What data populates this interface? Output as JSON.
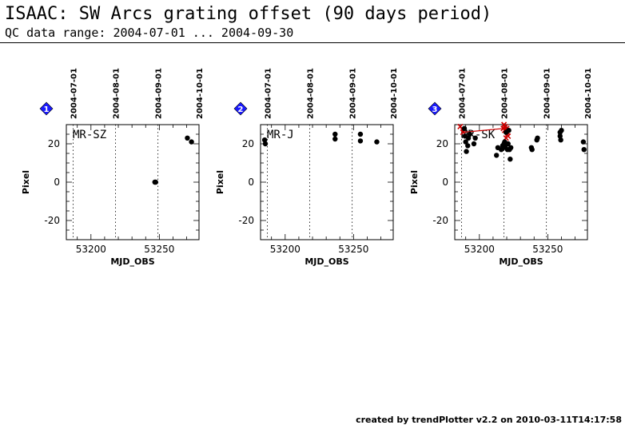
{
  "header": {
    "title": "ISAAC: SW Arcs grating offset (90 days period)",
    "subtitle": "QC data range: 2004-07-01 ... 2004-09-30"
  },
  "footer": {
    "credit": "created by trendPlotter v2.2 on 2010-03-11T14:17:58"
  },
  "colors": {
    "marker": "#000000",
    "highlight": "#cc0000",
    "badge": "#1a1aff"
  },
  "chart_data": [
    {
      "type": "scatter",
      "badge": "1",
      "label": "MR-SZ",
      "xlabel": "MJD_OBS",
      "ylabel": "Pixel",
      "xlim": [
        53182,
        53279
      ],
      "ylim": [
        -30,
        30
      ],
      "xticks": [
        53200,
        53250
      ],
      "yticks": [
        20,
        0,
        -20
      ],
      "date_ticks": [
        {
          "label": "2004-07-01",
          "mjd": 53187
        },
        {
          "label": "2004-08-01",
          "mjd": 53218
        },
        {
          "label": "2004-09-01",
          "mjd": 53249
        },
        {
          "label": "2004-10-01",
          "mjd": 53279
        }
      ],
      "points": [
        {
          "x": 53246.7,
          "y": 0
        },
        {
          "x": 53247.3,
          "y": 0
        },
        {
          "x": 53270.5,
          "y": 23
        },
        {
          "x": 53273.5,
          "y": 21
        }
      ],
      "highlight_points": []
    },
    {
      "type": "scatter",
      "badge": "2",
      "label": "MR-J",
      "xlabel": "MJD_OBS",
      "ylabel": "Pixel",
      "xlim": [
        53182,
        53279
      ],
      "ylim": [
        -30,
        30
      ],
      "xticks": [
        53200,
        53250
      ],
      "yticks": [
        20,
        0,
        -20
      ],
      "date_ticks": [
        {
          "label": "2004-07-01",
          "mjd": 53187
        },
        {
          "label": "2004-08-01",
          "mjd": 53218
        },
        {
          "label": "2004-09-01",
          "mjd": 53249
        },
        {
          "label": "2004-10-01",
          "mjd": 53279
        }
      ],
      "points": [
        {
          "x": 53185,
          "y": 22
        },
        {
          "x": 53185.5,
          "y": 20
        },
        {
          "x": 53236.5,
          "y": 25
        },
        {
          "x": 53236.5,
          "y": 22.5
        },
        {
          "x": 53255,
          "y": 25
        },
        {
          "x": 53255,
          "y": 21.5
        },
        {
          "x": 53267,
          "y": 21
        }
      ],
      "highlight_points": []
    },
    {
      "type": "scatter",
      "badge": "3",
      "label": "MR-SK",
      "xlabel": "MJD_OBS",
      "ylabel": "Pixel",
      "xlim": [
        53182,
        53279
      ],
      "ylim": [
        -30,
        30
      ],
      "xticks": [
        53200,
        53250
      ],
      "yticks": [
        20,
        0,
        -20
      ],
      "date_ticks": [
        {
          "label": "2004-07-01",
          "mjd": 53187
        },
        {
          "label": "2004-08-01",
          "mjd": 53218
        },
        {
          "label": "2004-09-01",
          "mjd": 53249
        },
        {
          "label": "2004-10-01",
          "mjd": 53279
        }
      ],
      "points": [
        {
          "x": 53189,
          "y": 28
        },
        {
          "x": 53189.5,
          "y": 24
        },
        {
          "x": 53190,
          "y": 21
        },
        {
          "x": 53190.5,
          "y": 16
        },
        {
          "x": 53191.5,
          "y": 19
        },
        {
          "x": 53192,
          "y": 23
        },
        {
          "x": 53193,
          "y": 25
        },
        {
          "x": 53196,
          "y": 20
        },
        {
          "x": 53197,
          "y": 23
        },
        {
          "x": 53212.5,
          "y": 14
        },
        {
          "x": 53213.5,
          "y": 18
        },
        {
          "x": 53216,
          "y": 17
        },
        {
          "x": 53217,
          "y": 19
        },
        {
          "x": 53217.5,
          "y": 18
        },
        {
          "x": 53218,
          "y": 20
        },
        {
          "x": 53218.5,
          "y": 21
        },
        {
          "x": 53219,
          "y": 19
        },
        {
          "x": 53219.5,
          "y": 26
        },
        {
          "x": 53220.5,
          "y": 17
        },
        {
          "x": 53221,
          "y": 20
        },
        {
          "x": 53221.5,
          "y": 27
        },
        {
          "x": 53222,
          "y": 17
        },
        {
          "x": 53222.5,
          "y": 12
        },
        {
          "x": 53223,
          "y": 18
        },
        {
          "x": 53238,
          "y": 18
        },
        {
          "x": 53238.5,
          "y": 17
        },
        {
          "x": 53242,
          "y": 22
        },
        {
          "x": 53242.5,
          "y": 23
        },
        {
          "x": 53259,
          "y": 26
        },
        {
          "x": 53259,
          "y": 24
        },
        {
          "x": 53259.5,
          "y": 22
        },
        {
          "x": 53260,
          "y": 27
        },
        {
          "x": 53276,
          "y": 21
        },
        {
          "x": 53276.5,
          "y": 17
        }
      ],
      "highlight_points": [
        {
          "x": 53186,
          "y": 29
        },
        {
          "x": 53188,
          "y": 26
        },
        {
          "x": 53217.5,
          "y": 28
        },
        {
          "x": 53218,
          "y": 30
        },
        {
          "x": 53218.5,
          "y": 27
        },
        {
          "x": 53219,
          "y": 29
        },
        {
          "x": 53219.5,
          "y": 23
        },
        {
          "x": 53220,
          "y": 28
        },
        {
          "x": 53220.5,
          "y": 26
        },
        {
          "x": 53221,
          "y": 24
        }
      ]
    }
  ]
}
